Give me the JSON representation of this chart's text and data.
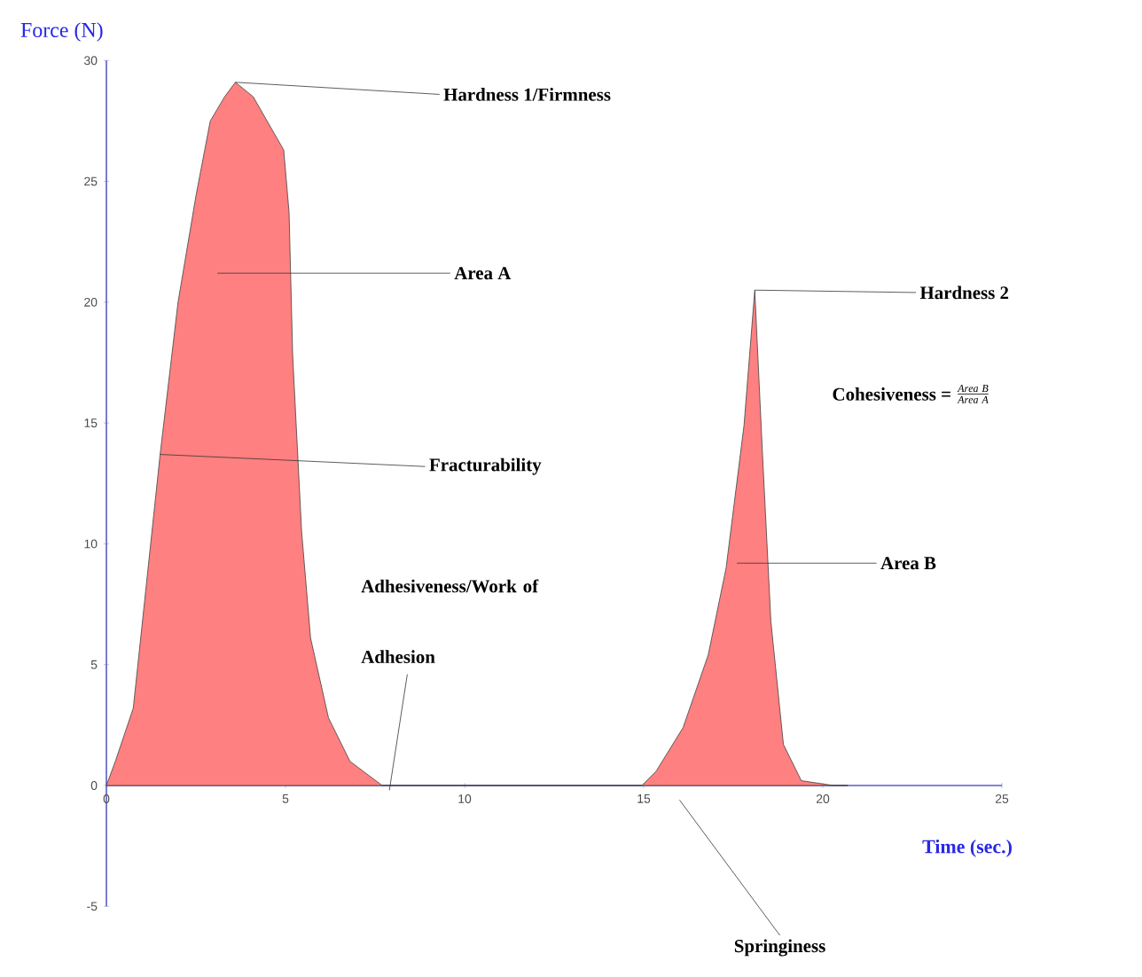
{
  "chart_data": {
    "type": "area",
    "xlabel": "Time (sec.)",
    "ylabel": "Force (N)",
    "x": [
      0,
      0.25,
      0.75,
      1.5,
      2.0,
      2.5,
      2.9,
      3.3,
      3.6,
      4.1,
      4.6,
      4.95,
      5.1,
      5.2,
      5.45,
      5.7,
      6.2,
      6.8,
      7.7,
      8,
      14.95,
      15.35,
      16.1,
      16.8,
      17.3,
      17.8,
      18.1,
      18.3,
      18.55,
      18.9,
      19.4,
      20.3,
      20.7
    ],
    "series": [
      {
        "color": "#ff8080",
        "values": [
          0,
          1,
          3.2,
          13.7,
          20,
          24.4,
          27.5,
          28.5,
          29.1,
          28.5,
          27.2,
          26.3,
          23.7,
          17.8,
          10.5,
          6.1,
          2.8,
          1,
          0,
          0,
          0,
          0.6,
          2.4,
          5.4,
          9,
          14.9,
          20.5,
          14.2,
          6.8,
          1.7,
          0.2,
          0,
          0
        ]
      }
    ],
    "xlim": [
      0,
      25
    ],
    "ylim": [
      -5,
      30
    ],
    "xticks": [
      0,
      5,
      10,
      15,
      20,
      25
    ],
    "yticks": [
      -5,
      0,
      5,
      10,
      15,
      20,
      25,
      30
    ],
    "grid": false,
    "marker": "none",
    "annotations": [
      {
        "text": "Hardness 1/Firmness",
        "x": 3.6,
        "y": 29.1
      },
      "Area A",
      {
        "text": "Fracturability",
        "x": 1.5,
        "y": 13.7
      },
      "Adhesiveness/Work of Adhesion",
      {
        "text": "Hardness 2",
        "x": 18.1,
        "y": 20.5
      },
      "Area B",
      "Springiness",
      "Cohesiveness =",
      "\\frac{\\mathit{Area\\ B}}{\\mathit{Area\\ A}}"
    ]
  }
}
